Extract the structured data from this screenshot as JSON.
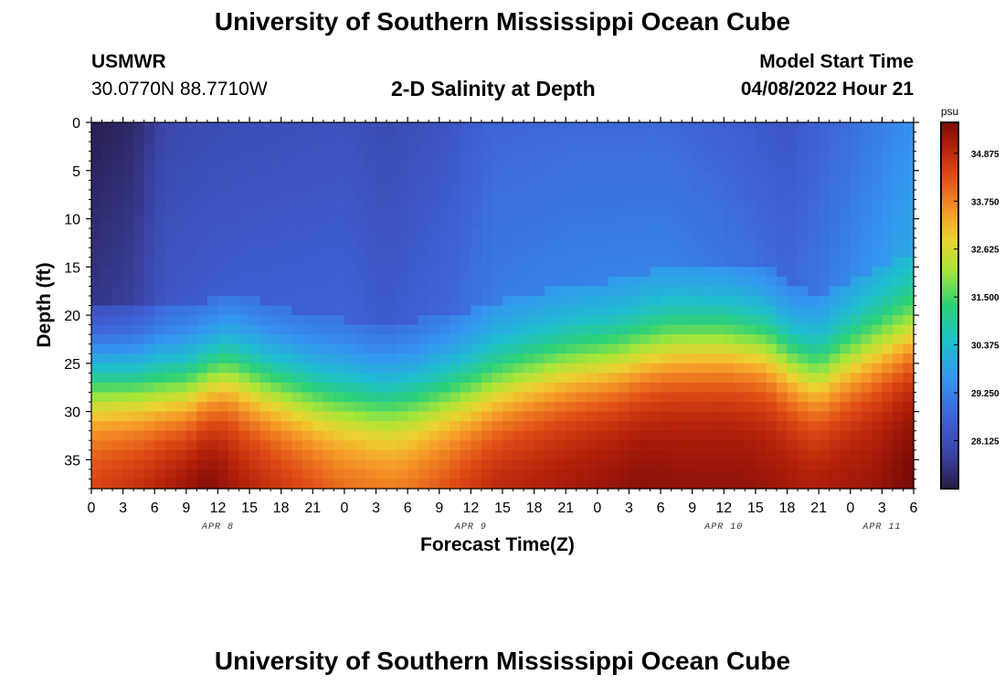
{
  "page": {
    "title": "University of Southern Mississippi Ocean Cube",
    "footer_title": "University of Southern Mississippi Ocean Cube"
  },
  "station": {
    "name": "USMWR",
    "coords": "30.0770N  88.7710W"
  },
  "model": {
    "label": "Model Start Time",
    "start": "04/08/2022 Hour 21"
  },
  "chart_data": {
    "type": "heatmap",
    "title": "2-D Salinity at Depth",
    "xlabel": "Forecast Time(Z)",
    "ylabel": "Depth (ft)",
    "xlim_hours": [
      0,
      78
    ],
    "ylim": [
      0,
      38
    ],
    "x_ticks": [
      "0",
      "3",
      "6",
      "9",
      "12",
      "15",
      "18",
      "21",
      "0",
      "3",
      "6",
      "9",
      "12",
      "15",
      "18",
      "21",
      "0",
      "3",
      "6",
      "9",
      "12",
      "15",
      "18",
      "21",
      "0",
      "3",
      "6"
    ],
    "y_ticks": [
      "0",
      "5",
      "10",
      "15",
      "20",
      "25",
      "30",
      "35"
    ],
    "y_tick_values": [
      0,
      5,
      10,
      15,
      20,
      25,
      30,
      35
    ],
    "day_labels": [
      {
        "text": "APR 8",
        "hour": 12
      },
      {
        "text": "APR 9",
        "hour": 36
      },
      {
        "text": "APR 10",
        "hour": 60
      },
      {
        "text": "APR 11",
        "hour": 75
      }
    ],
    "colorbar": {
      "unit": "psu",
      "min": 27.0,
      "max": 35.6,
      "ticks": [
        "34.875",
        "33.750",
        "32.625",
        "31.500",
        "30.375",
        "29.250",
        "28.125"
      ],
      "tick_values": [
        34.875,
        33.75,
        32.625,
        31.5,
        30.375,
        29.25,
        28.125
      ]
    },
    "layers": {
      "surface_by_hour": [
        [
          0,
          27.1
        ],
        [
          4,
          27.3
        ],
        [
          7,
          27.9
        ],
        [
          10,
          28.0
        ],
        [
          16,
          28.1
        ],
        [
          24,
          28.2
        ],
        [
          28,
          28.0
        ],
        [
          34,
          28.3
        ],
        [
          38,
          28.7
        ],
        [
          46,
          28.8
        ],
        [
          54,
          28.8
        ],
        [
          60,
          28.6
        ],
        [
          66,
          28.3
        ],
        [
          70,
          28.7
        ],
        [
          75,
          29.2
        ],
        [
          78,
          29.5
        ]
      ],
      "halocline_depth_by_hour": [
        [
          0,
          26.5
        ],
        [
          5,
          27.0
        ],
        [
          9,
          27.3
        ],
        [
          13,
          25.5
        ],
        [
          17,
          27.0
        ],
        [
          22,
          28.3
        ],
        [
          27,
          28.8
        ],
        [
          31,
          28.5
        ],
        [
          37,
          27.3
        ],
        [
          41,
          26.0
        ],
        [
          45,
          25.0
        ],
        [
          50,
          24.3
        ],
        [
          55,
          22.8
        ],
        [
          60,
          22.5
        ],
        [
          64,
          23.0
        ],
        [
          67,
          25.0
        ],
        [
          69,
          26.0
        ],
        [
          71,
          24.8
        ],
        [
          74,
          23.3
        ],
        [
          78,
          21.8
        ]
      ],
      "bottom_by_hour": [
        [
          0,
          34.4
        ],
        [
          5,
          34.8
        ],
        [
          9,
          35.3
        ],
        [
          11,
          35.5
        ],
        [
          14,
          35.0
        ],
        [
          19,
          34.5
        ],
        [
          24,
          34.0
        ],
        [
          29,
          33.8
        ],
        [
          33,
          34.2
        ],
        [
          38,
          34.8
        ],
        [
          44,
          35.0
        ],
        [
          52,
          35.3
        ],
        [
          56,
          35.2
        ],
        [
          62,
          35.2
        ],
        [
          68,
          35.0
        ],
        [
          74,
          35.1
        ],
        [
          78,
          35.5
        ]
      ]
    }
  }
}
